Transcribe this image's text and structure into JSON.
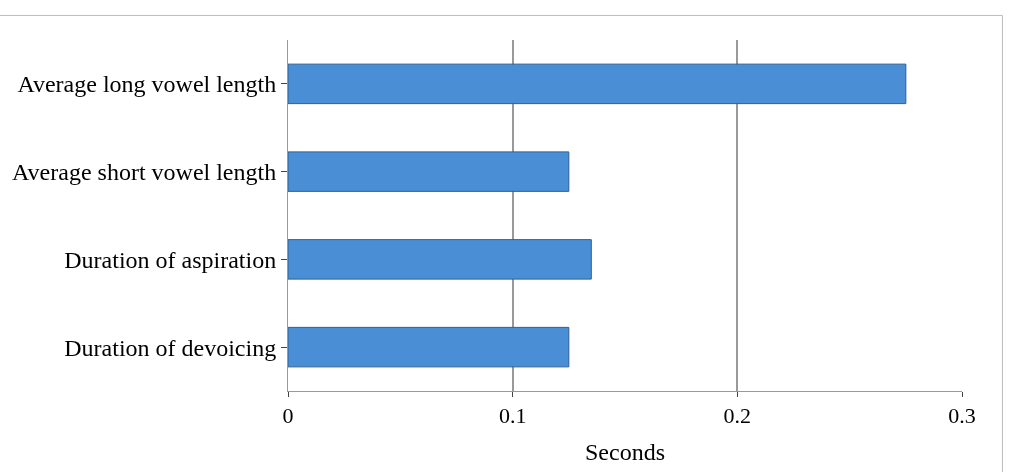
{
  "chart_data": {
    "type": "bar",
    "orientation": "horizontal",
    "xlabel": "Seconds",
    "categories": [
      "Average long vowel length",
      "Average short vowel length",
      "Duration of aspiration",
      "Duration of devoicing"
    ],
    "values": [
      0.275,
      0.125,
      0.135,
      0.125
    ],
    "color": "#4a8fd6",
    "xlim": [
      0,
      0.3
    ],
    "xticks": [
      0,
      0.1,
      0.2,
      0.3
    ],
    "grid": "x"
  }
}
